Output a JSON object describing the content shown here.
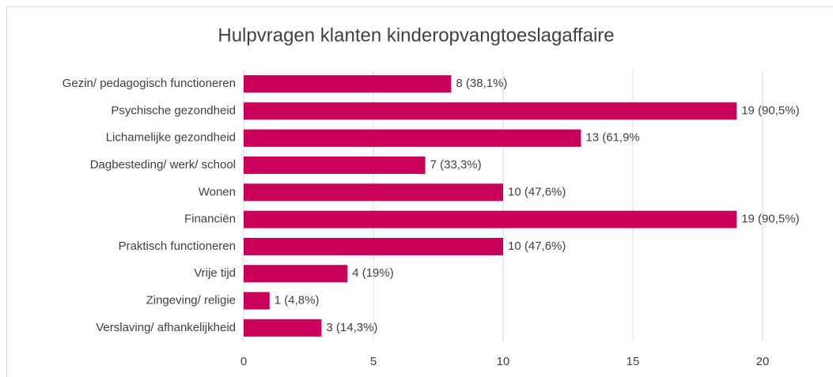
{
  "chart_data": {
    "type": "bar",
    "orientation": "horizontal",
    "title": "Hulpvragen klanten kinderopvangtoeslagaffaire",
    "categories": [
      "Gezin/ pedagogisch functioneren",
      "Psychische gezondheid",
      "Lichamelijke gezondheid",
      "Dagbesteding/ werk/ school",
      "Wonen",
      "Financiën",
      "Praktisch functioneren",
      "Vrije tijd",
      "Zingeving/ religie",
      "Verslaving/ afhankelijkheid"
    ],
    "values": [
      8,
      19,
      13,
      7,
      10,
      19,
      10,
      4,
      1,
      3
    ],
    "value_labels": [
      "8 (38,1%)",
      "19 (90,5%)",
      "13 (61,9%",
      "7 (33,3%)",
      "10 (47,6%)",
      "19 (90,5%)",
      "10 (47,6%)",
      "4 (19%)",
      "1 (4,8%)",
      "3 (14,3%)"
    ],
    "color": "#c8005a",
    "xlim": [
      0,
      22
    ],
    "xticks": [
      0,
      5,
      10,
      15,
      20
    ],
    "grid": true
  }
}
